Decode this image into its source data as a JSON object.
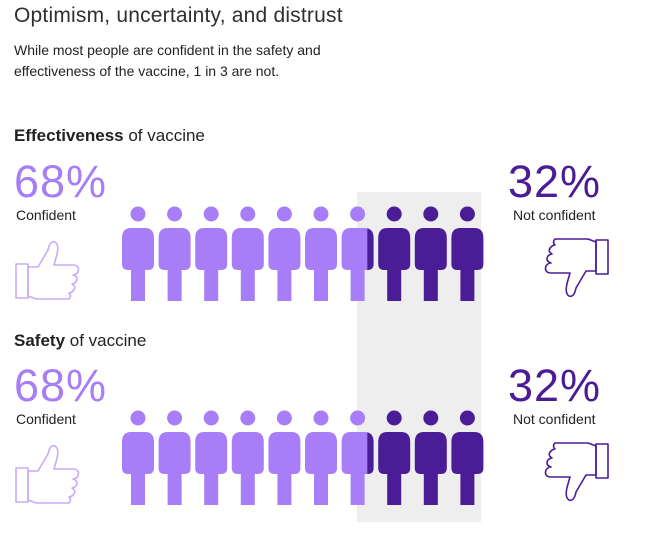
{
  "title": "Optimism, uncertainty, and distrust",
  "subtitle": "While most people are confident in the safety and effectiveness of the vaccine, 1 in 3 are not.",
  "colors": {
    "confident": "#a77ef7",
    "not_confident": "#4a1d96",
    "shade": "#eeeeee"
  },
  "icons": {
    "confident": "thumbs-up-icon",
    "not_confident": "thumbs-down-icon",
    "person": "person-icon"
  },
  "chart_data": [
    {
      "type": "pictograph",
      "heading_bold": "Effectiveness",
      "heading_rest": " of vaccine",
      "total_icons": 10,
      "series": [
        {
          "name": "Confident",
          "value_label": "68%",
          "value": 68
        },
        {
          "name": "Not confident",
          "value_label": "32%",
          "value": 32
        }
      ]
    },
    {
      "type": "pictograph",
      "heading_bold": "Safety",
      "heading_rest": " of vaccine",
      "total_icons": 10,
      "series": [
        {
          "name": "Confident",
          "value_label": "68%",
          "value": 68
        },
        {
          "name": "Not confident",
          "value_label": "32%",
          "value": 32
        }
      ]
    }
  ]
}
